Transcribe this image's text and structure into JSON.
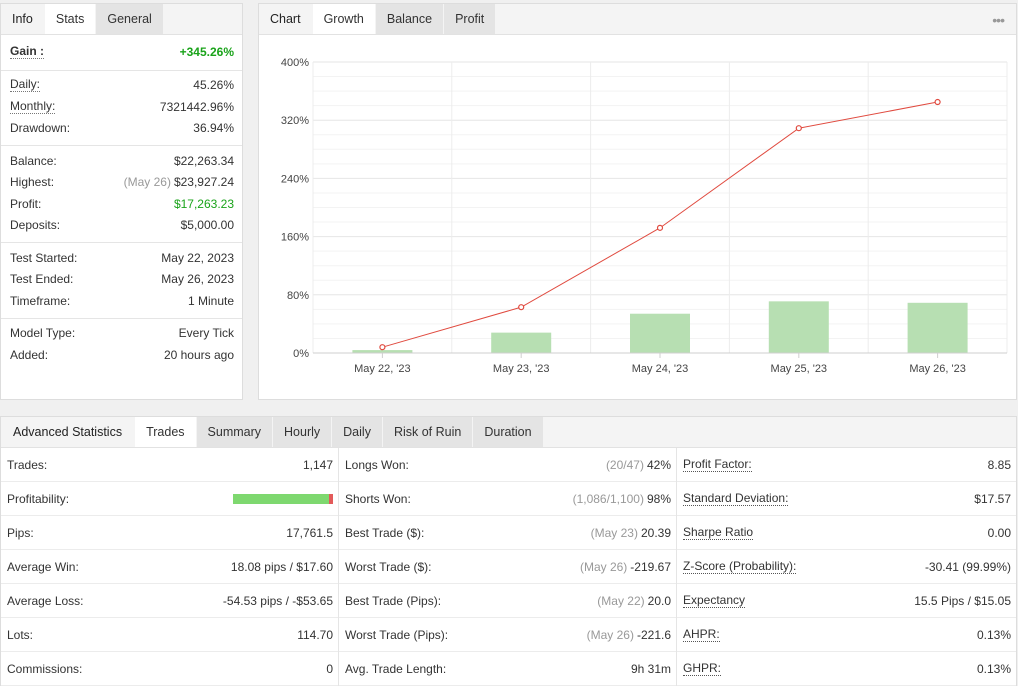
{
  "info": {
    "tabs": [
      "Info",
      "Stats",
      "General"
    ],
    "active_tab": "Stats",
    "gain_label": "Gain :",
    "gain_value": "+345.26%",
    "groups": [
      [
        {
          "label": "Daily:",
          "value": "45.26%",
          "dotted": true
        },
        {
          "label": "Monthly:",
          "value": "7321442.96%",
          "dotted": true
        },
        {
          "label": "Drawdown:",
          "value": "36.94%"
        }
      ],
      [
        {
          "label": "Balance:",
          "value": "$22,263.34"
        },
        {
          "label": "Highest:",
          "muted": "(May 26)",
          "value": "$23,927.24"
        },
        {
          "label": "Profit:",
          "value": "$17,263.23",
          "green": true
        },
        {
          "label": "Deposits:",
          "value": "$5,000.00"
        }
      ],
      [
        {
          "label": "Test Started:",
          "value": "May 22, 2023"
        },
        {
          "label": "Test Ended:",
          "value": "May 26, 2023"
        },
        {
          "label": "Timeframe:",
          "value": "1 Minute"
        }
      ],
      [
        {
          "label": "Model Type:",
          "value": "Every Tick"
        },
        {
          "label": "Added:",
          "value": "20 hours ago"
        }
      ]
    ]
  },
  "chart_panel": {
    "tabs": [
      "Chart",
      "Growth",
      "Balance",
      "Profit"
    ],
    "active_tab": "Growth",
    "more_icon": "•••"
  },
  "chart_data": {
    "type": "bar+line",
    "categories": [
      "May 22, '23",
      "May 23, '23",
      "May 24, '23",
      "May 25, '23",
      "May 26, '23"
    ],
    "ylim": [
      0,
      400
    ],
    "yticks": [
      "0%",
      "80%",
      "160%",
      "240%",
      "320%",
      "400%"
    ],
    "ytick_values": [
      0,
      80,
      160,
      240,
      320,
      400
    ],
    "series": [
      {
        "type": "line",
        "values": [
          8,
          63,
          172,
          309,
          345
        ],
        "color": "#e04a3f"
      },
      {
        "type": "bar",
        "values": [
          4,
          28,
          54,
          71,
          69
        ],
        "color": "#b7dfb2"
      }
    ],
    "grid": true
  },
  "advanced": {
    "title": "Advanced Statistics",
    "tabs": [
      "Trades",
      "Summary",
      "Hourly",
      "Daily",
      "Risk of Ruin",
      "Duration"
    ],
    "active_tab": "Trades",
    "col1": [
      {
        "label": "Trades:",
        "value": "1,147"
      },
      {
        "label": "Profitability:",
        "bar": true,
        "win_fraction": 0.96
      },
      {
        "label": "Pips:",
        "value": "17,761.5"
      },
      {
        "label": "Average Win:",
        "value": "18.08 pips / $17.60"
      },
      {
        "label": "Average Loss:",
        "value": "-54.53 pips / -$53.65"
      },
      {
        "label": "Lots:",
        "value": "114.70"
      },
      {
        "label": "Commissions:",
        "value": "0"
      }
    ],
    "col2": [
      {
        "label": "Longs Won:",
        "muted": "(20/47)",
        "value": "42%"
      },
      {
        "label": "Shorts Won:",
        "muted": "(1,086/1,100)",
        "value": "98%"
      },
      {
        "label": "Best Trade ($):",
        "muted": "(May 23)",
        "value": "20.39"
      },
      {
        "label": "Worst Trade ($):",
        "muted": "(May 26)",
        "value": "-219.67"
      },
      {
        "label": "Best Trade (Pips):",
        "muted": "(May 22)",
        "value": "20.0"
      },
      {
        "label": "Worst Trade (Pips):",
        "muted": "(May 26)",
        "value": "-221.6"
      },
      {
        "label": "Avg. Trade Length:",
        "value": "9h 31m"
      }
    ],
    "col3": [
      {
        "label": "Profit Factor:",
        "value": "8.85"
      },
      {
        "label": "Standard Deviation:",
        "value": "$17.57"
      },
      {
        "label": "Sharpe Ratio",
        "value": "0.00"
      },
      {
        "label": "Z-Score (Probability):",
        "value": "-30.41 (99.99%)"
      },
      {
        "label": "Expectancy",
        "value": "15.5 Pips / $15.05"
      },
      {
        "label": "AHPR:",
        "value": "0.13%"
      },
      {
        "label": "GHPR:",
        "value": "0.13%"
      }
    ]
  }
}
